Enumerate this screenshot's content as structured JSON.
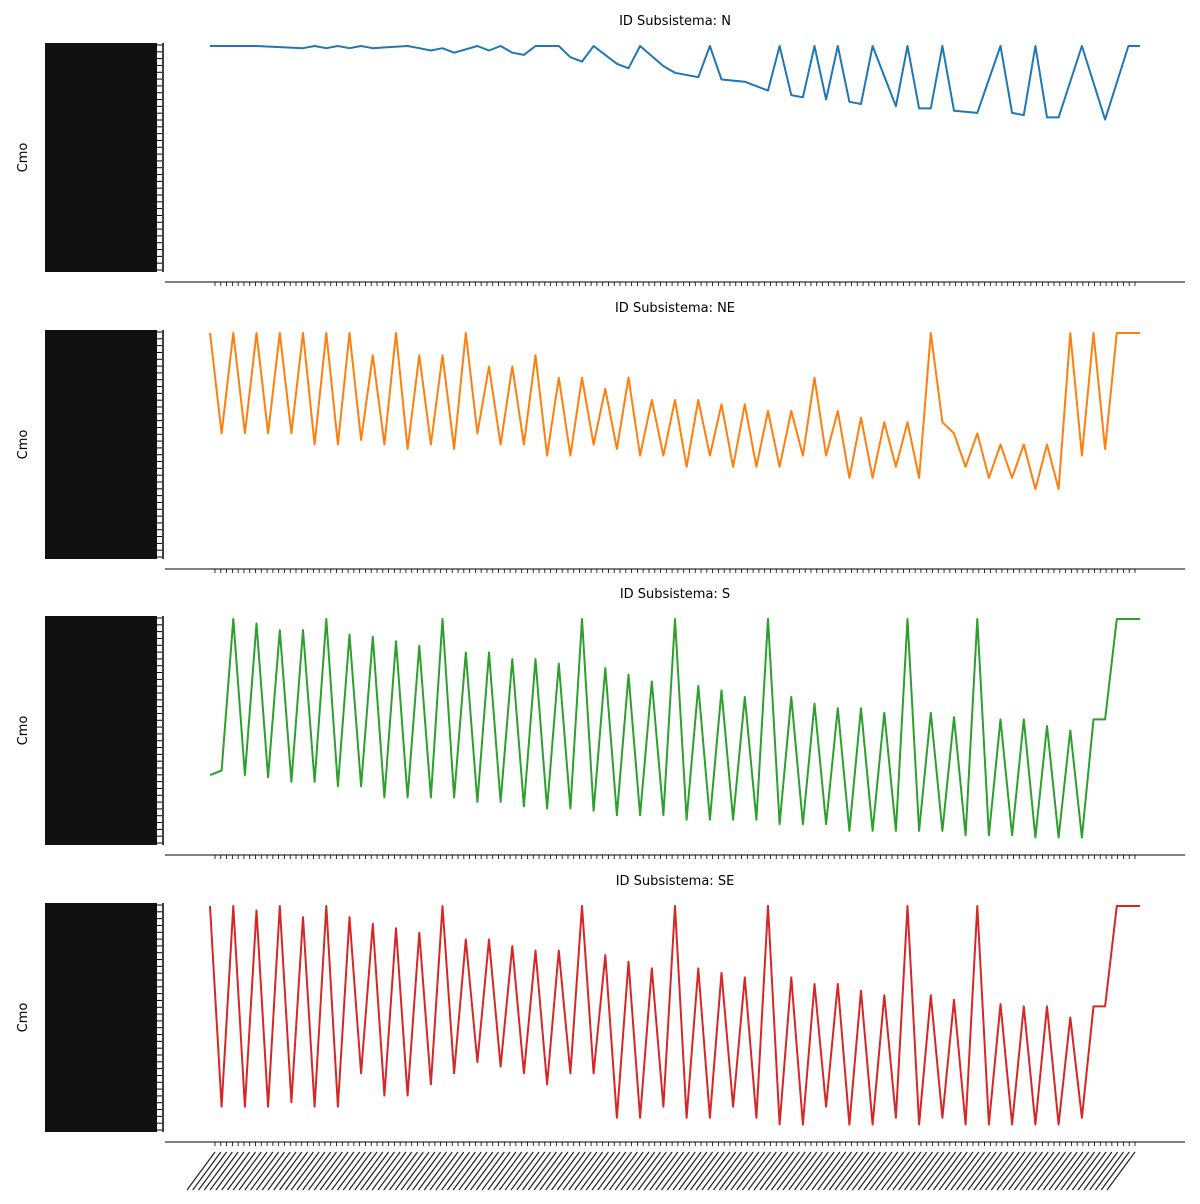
{
  "chart_data": [
    {
      "type": "line",
      "title": "ID Subsistema: N",
      "xlabel": "",
      "ylabel": "Cmo",
      "color": "#1f77b4",
      "grid": false,
      "legend": "none",
      "y_ticks_note": "dense overlapping categorical tick labels, unreadable",
      "x": [
        0,
        8,
        16,
        18,
        20,
        22,
        24,
        26,
        28,
        34,
        36,
        38,
        40,
        42,
        46,
        48,
        50,
        52,
        54,
        56,
        60,
        62,
        64,
        66,
        70,
        72,
        74,
        78,
        80,
        84,
        86,
        88,
        92,
        96,
        98,
        100,
        102,
        104,
        106,
        108,
        110,
        112,
        114,
        118,
        120,
        122,
        124,
        126,
        128,
        132,
        136,
        138,
        140,
        142,
        144,
        146,
        150,
        154,
        158,
        160
      ],
      "values": [
        1,
        1,
        0.99,
        1,
        0.99,
        1,
        0.99,
        1,
        0.99,
        1,
        0.99,
        0.98,
        0.99,
        0.97,
        1,
        0.98,
        1,
        0.97,
        0.96,
        1,
        1,
        0.95,
        0.93,
        1,
        0.92,
        0.9,
        1,
        0.91,
        0.88,
        0.86,
        1,
        0.85,
        0.84,
        0.8,
        1,
        0.78,
        0.77,
        1,
        0.76,
        1,
        0.75,
        0.74,
        1,
        0.73,
        1,
        0.72,
        0.72,
        1,
        0.71,
        0.7,
        1,
        0.7,
        0.69,
        1,
        0.68,
        0.68,
        1,
        0.67,
        1,
        1
      ]
    },
    {
      "type": "line",
      "title": "ID Subsistema: NE",
      "xlabel": "",
      "ylabel": "Cmo",
      "color": "#ff7f0e",
      "grid": false,
      "legend": "none",
      "y_ticks_note": "dense overlapping categorical tick labels, unreadable",
      "x": [
        0,
        2,
        4,
        6,
        8,
        10,
        12,
        14,
        16,
        18,
        20,
        22,
        24,
        26,
        28,
        30,
        32,
        34,
        36,
        38,
        40,
        42,
        44,
        46,
        48,
        50,
        52,
        54,
        56,
        58,
        60,
        62,
        64,
        66,
        68,
        70,
        72,
        74,
        76,
        78,
        80,
        82,
        84,
        86,
        88,
        90,
        92,
        94,
        96,
        98,
        100,
        102,
        104,
        106,
        108,
        110,
        112,
        114,
        116,
        118,
        120,
        122,
        124,
        126,
        128,
        130,
        132,
        134,
        136,
        138,
        140,
        142,
        144,
        146,
        148,
        150,
        152,
        154,
        156,
        158,
        160
      ],
      "values": [
        1,
        0.55,
        1,
        0.55,
        1,
        0.55,
        1,
        0.55,
        1,
        0.5,
        1,
        0.5,
        1,
        0.52,
        0.9,
        0.5,
        1,
        0.48,
        0.9,
        0.5,
        0.9,
        0.48,
        1,
        0.55,
        0.85,
        0.5,
        0.85,
        0.5,
        0.9,
        0.45,
        0.8,
        0.45,
        0.8,
        0.5,
        0.75,
        0.48,
        0.8,
        0.45,
        0.7,
        0.45,
        0.7,
        0.4,
        0.7,
        0.45,
        0.68,
        0.4,
        0.68,
        0.4,
        0.65,
        0.4,
        0.65,
        0.45,
        0.8,
        0.45,
        0.65,
        0.35,
        0.62,
        0.35,
        0.6,
        0.4,
        0.6,
        0.35,
        1,
        0.6,
        0.55,
        0.4,
        0.55,
        0.35,
        0.5,
        0.35,
        0.5,
        0.3,
        0.5,
        0.3,
        1,
        0.45,
        1,
        0.48,
        1,
        1,
        1
      ]
    },
    {
      "type": "line",
      "title": "ID Subsistema: S",
      "xlabel": "",
      "ylabel": "Cmo",
      "color": "#2ca02c",
      "grid": false,
      "legend": "none",
      "y_ticks_note": "dense overlapping categorical tick labels, unreadable",
      "x": [
        0,
        2,
        4,
        6,
        8,
        10,
        12,
        14,
        16,
        18,
        20,
        22,
        24,
        26,
        28,
        30,
        32,
        34,
        36,
        38,
        40,
        42,
        44,
        46,
        48,
        50,
        52,
        54,
        56,
        58,
        60,
        62,
        64,
        66,
        68,
        70,
        72,
        74,
        76,
        78,
        80,
        82,
        84,
        86,
        88,
        90,
        92,
        94,
        96,
        98,
        100,
        102,
        104,
        106,
        108,
        110,
        112,
        114,
        116,
        118,
        120,
        122,
        124,
        126,
        128,
        130,
        132,
        134,
        136,
        138,
        140,
        142,
        144,
        146,
        148,
        150,
        152,
        154,
        156,
        158,
        160
      ],
      "values": [
        0.3,
        0.32,
        1,
        0.3,
        0.98,
        0.29,
        0.95,
        0.27,
        0.95,
        0.27,
        1,
        0.25,
        0.93,
        0.25,
        0.92,
        0.2,
        0.9,
        0.2,
        0.88,
        0.2,
        1,
        0.2,
        0.85,
        0.18,
        0.85,
        0.18,
        0.82,
        0.16,
        0.82,
        0.15,
        0.8,
        0.15,
        1,
        0.14,
        0.78,
        0.12,
        0.75,
        0.12,
        0.72,
        0.12,
        1,
        0.1,
        0.7,
        0.1,
        0.68,
        0.1,
        0.65,
        0.1,
        1,
        0.08,
        0.65,
        0.08,
        0.62,
        0.08,
        0.6,
        0.05,
        0.6,
        0.05,
        0.58,
        0.05,
        1,
        0.05,
        0.58,
        0.05,
        0.56,
        0.03,
        1,
        0.03,
        0.55,
        0.03,
        0.55,
        0.02,
        0.52,
        0.02,
        0.5,
        0.02,
        0.55,
        0.55,
        1,
        1,
        1
      ]
    },
    {
      "type": "line",
      "title": "ID Subsistema: SE",
      "xlabel": "",
      "ylabel": "Cmo",
      "color": "#d62728",
      "grid": false,
      "legend": "none",
      "y_ticks_note": "dense overlapping categorical tick labels, unreadable",
      "x": [
        0,
        2,
        4,
        6,
        8,
        10,
        12,
        14,
        16,
        18,
        20,
        22,
        24,
        26,
        28,
        30,
        32,
        34,
        36,
        38,
        40,
        42,
        44,
        46,
        48,
        50,
        52,
        54,
        56,
        58,
        60,
        62,
        64,
        66,
        68,
        70,
        72,
        74,
        76,
        78,
        80,
        82,
        84,
        86,
        88,
        90,
        92,
        94,
        96,
        98,
        100,
        102,
        104,
        106,
        108,
        110,
        112,
        114,
        116,
        118,
        120,
        122,
        124,
        126,
        128,
        130,
        132,
        134,
        136,
        138,
        140,
        142,
        144,
        146,
        148,
        150,
        152,
        154,
        156,
        158,
        160
      ],
      "values": [
        1,
        0.1,
        1,
        0.1,
        0.98,
        0.1,
        1,
        0.12,
        0.95,
        0.1,
        1,
        0.1,
        0.95,
        0.25,
        0.92,
        0.15,
        0.9,
        0.15,
        0.88,
        0.2,
        1,
        0.25,
        0.85,
        0.3,
        0.85,
        0.28,
        0.82,
        0.25,
        0.8,
        0.2,
        0.8,
        0.25,
        1,
        0.25,
        0.78,
        0.05,
        0.75,
        0.05,
        0.72,
        0.1,
        1,
        0.05,
        0.72,
        0.05,
        0.7,
        0.1,
        0.68,
        0.05,
        1,
        0.02,
        0.68,
        0.02,
        0.65,
        0.1,
        0.65,
        0.02,
        0.62,
        0.02,
        0.6,
        0.05,
        1,
        0.02,
        0.6,
        0.05,
        0.58,
        0.02,
        1,
        0.02,
        0.56,
        0.02,
        0.55,
        0.02,
        0.55,
        0.02,
        0.5,
        0.05,
        0.55,
        0.55,
        1,
        1,
        1
      ]
    }
  ],
  "x_axis": {
    "tick_count": 160,
    "tick_label_note": "rotated dense date labels (overlapping, unreadable)"
  }
}
